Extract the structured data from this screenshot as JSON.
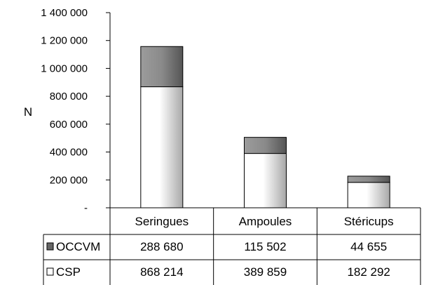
{
  "chart_data": {
    "type": "bar",
    "stacked": true,
    "title": "",
    "xlabel": "",
    "ylabel": "N",
    "ylim": [
      0,
      1400000
    ],
    "yticks": [
      0,
      200000,
      400000,
      600000,
      800000,
      1000000,
      1200000,
      1400000
    ],
    "ytick_labels": [
      "-",
      "200 000",
      "400 000",
      "600 000",
      "800 000",
      "1 000 000",
      "1 200 000",
      "1 400 000"
    ],
    "categories": [
      "Seringues",
      "Ampoules",
      "Stéricups"
    ],
    "grid": false,
    "legend": "data-table-left",
    "series": [
      {
        "name": "CSP",
        "values": [
          868214,
          389859,
          182292
        ],
        "value_labels": [
          "868 214",
          "389 859",
          "182 292"
        ],
        "fill": "light-gray-gradient",
        "colors": [
          "#ffffff",
          "#aaaaaa"
        ]
      },
      {
        "name": "OCCVM",
        "values": [
          288680,
          115502,
          44655
        ],
        "value_labels": [
          "288 680",
          "115 502",
          "44 655"
        ],
        "fill": "dark-gray-gradient",
        "colors": [
          "#9a9a9a",
          "#555555"
        ]
      }
    ]
  }
}
